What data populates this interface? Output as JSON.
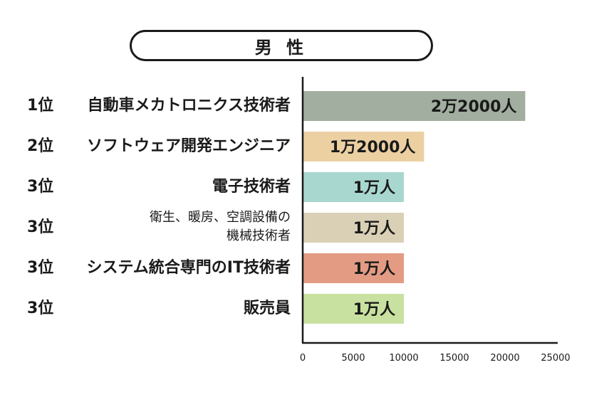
{
  "title": "男 性",
  "chart_data": {
    "type": "bar",
    "orientation": "horizontal",
    "ranks": [
      "1位",
      "2位",
      "3位",
      "3位",
      "3位",
      "3位"
    ],
    "categories": [
      "自動車メカトロニクス技術者",
      "ソフトウェア開発エンジニア",
      "電子技術者",
      "衛生、暖房、空調設備の\n機械技術者",
      "システム統合専門のIT技術者",
      "販売員"
    ],
    "values": [
      22000,
      12000,
      10000,
      10000,
      10000,
      10000
    ],
    "data_labels": [
      "2万2000人",
      "1万2000人",
      "1万人",
      "1万人",
      "1万人",
      "1万人"
    ],
    "colors": [
      "#a2ae9f",
      "#ecd0a2",
      "#a8d7cf",
      "#d9d0b6",
      "#e39b83",
      "#c9e1a0"
    ],
    "xlim": [
      0,
      25000
    ],
    "xticks": [
      "0",
      "5000",
      "10000",
      "15000",
      "20000",
      "25000"
    ],
    "grid": false
  }
}
